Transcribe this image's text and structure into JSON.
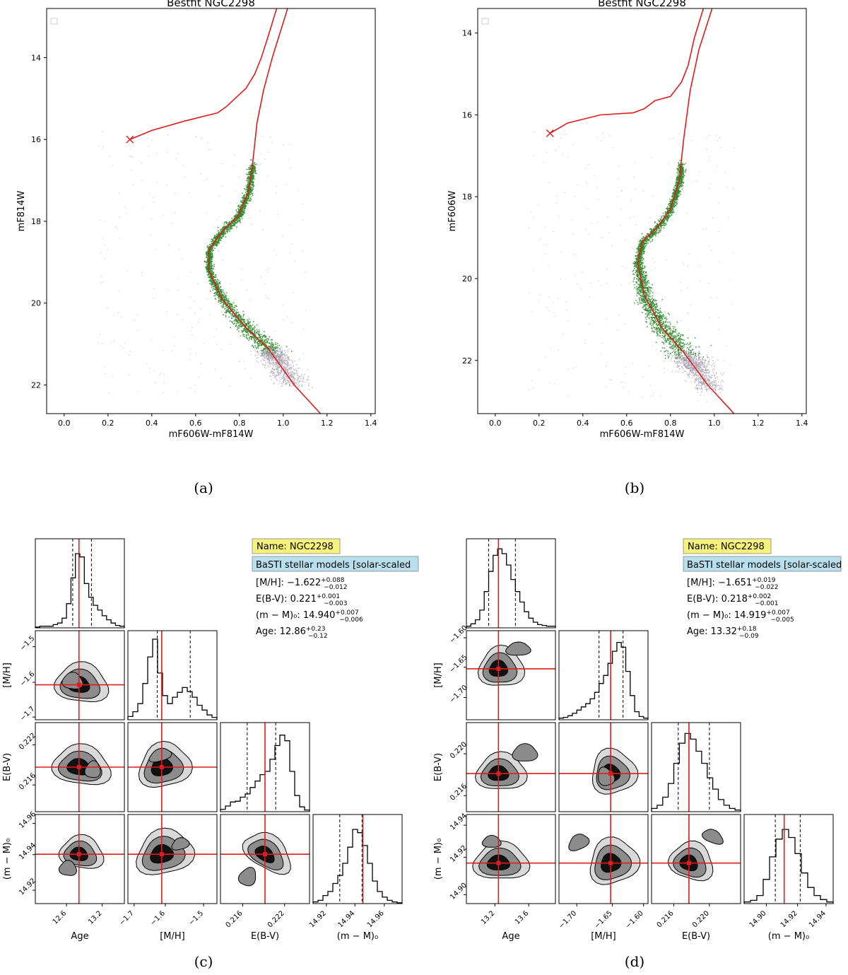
{
  "cmd_panels": [
    {
      "id": "a",
      "caption": "(a)",
      "chart_data": {
        "type": "scatter",
        "title": "Bestfit NGC2298",
        "xlabel": "mF606W-mF814W",
        "ylabel": "mF814W",
        "xlim": [
          -0.08,
          1.42
        ],
        "ylim": [
          22.7,
          12.8
        ],
        "xticks": [
          "0.0",
          "0.2",
          "0.4",
          "0.6",
          "0.8",
          "1.0",
          "1.2",
          "1.4"
        ],
        "yticks": [
          "14",
          "16",
          "18",
          "20",
          "22"
        ],
        "ytick_values": [
          14,
          16,
          18,
          20,
          22
        ],
        "xtick_values": [
          0.0,
          0.2,
          0.4,
          0.6,
          0.8,
          1.0,
          1.2,
          1.4
        ],
        "isochrone": {
          "hb": [
            [
              0.3,
              16.0
            ],
            [
              0.4,
              15.78
            ],
            [
              0.55,
              15.55
            ],
            [
              0.7,
              15.35
            ],
            [
              0.74,
              15.2
            ],
            [
              0.78,
              15.0
            ],
            [
              0.83,
              14.75
            ],
            [
              0.87,
              14.4
            ],
            [
              0.9,
              14.0
            ],
            [
              0.93,
              13.5
            ],
            [
              0.97,
              12.8
            ]
          ],
          "rgb": [
            [
              1.17,
              22.7
            ],
            [
              1.05,
              22.0
            ],
            [
              0.93,
              21.1
            ],
            [
              0.83,
              20.6
            ],
            [
              0.72,
              19.9
            ],
            [
              0.66,
              19.2
            ],
            [
              0.66,
              18.7
            ],
            [
              0.72,
              18.25
            ],
            [
              0.79,
              17.9
            ],
            [
              0.84,
              17.3
            ],
            [
              0.86,
              16.6
            ],
            [
              0.88,
              15.6
            ],
            [
              0.91,
              14.8
            ],
            [
              0.95,
              14.0
            ],
            [
              1.02,
              12.8
            ]
          ]
        },
        "hb_end_marker": [
          0.3,
          16.0
        ]
      }
    },
    {
      "id": "b",
      "caption": "(b)",
      "chart_data": {
        "type": "scatter",
        "title": "Bestfit NGC2298",
        "xlabel": "mF606W-mF814W",
        "ylabel": "mF606W",
        "xlim": [
          -0.08,
          1.42
        ],
        "ylim": [
          23.3,
          13.4
        ],
        "xticks": [
          "0.0",
          "0.2",
          "0.4",
          "0.6",
          "0.8",
          "1.0",
          "1.2",
          "1.4"
        ],
        "yticks": [
          "14",
          "16",
          "18",
          "20",
          "22"
        ],
        "ytick_values": [
          14,
          16,
          18,
          20,
          22
        ],
        "xtick_values": [
          0.0,
          0.2,
          0.4,
          0.6,
          0.8,
          1.0,
          1.2,
          1.4
        ],
        "isochrone": {
          "hb": [
            [
              0.25,
              16.45
            ],
            [
              0.33,
              16.2
            ],
            [
              0.48,
              16.0
            ],
            [
              0.63,
              15.95
            ],
            [
              0.68,
              15.85
            ],
            [
              0.73,
              15.65
            ],
            [
              0.8,
              15.55
            ],
            [
              0.85,
              15.2
            ],
            [
              0.88,
              14.8
            ],
            [
              0.91,
              14.1
            ],
            [
              0.95,
              13.4
            ]
          ],
          "rgb": [
            [
              1.09,
              23.3
            ],
            [
              0.97,
              22.6
            ],
            [
              0.86,
              21.8
            ],
            [
              0.76,
              21.2
            ],
            [
              0.68,
              20.4
            ],
            [
              0.65,
              19.6
            ],
            [
              0.67,
              19.1
            ],
            [
              0.74,
              18.75
            ],
            [
              0.8,
              18.3
            ],
            [
              0.84,
              17.6
            ],
            [
              0.86,
              16.6
            ],
            [
              0.89,
              15.4
            ],
            [
              0.93,
              14.4
            ],
            [
              0.99,
              13.4
            ]
          ]
        },
        "hb_end_marker": [
          0.25,
          16.45
        ]
      }
    }
  ],
  "corner_panels": [
    {
      "id": "c",
      "caption": "(c)",
      "name_label": "Name: NGC2298",
      "models_label": "BaSTI stellar models [solar-scaled",
      "params": [
        {
          "label": "[M/H]: ",
          "value": "−1.622",
          "sup": "+0.088",
          "sub": "−0.012"
        },
        {
          "label": "E(B-V): ",
          "value": "0.221",
          "sup": "+0.001",
          "sub": "−0.003"
        },
        {
          "label": "(m − M)₀: ",
          "value": "14.940",
          "sup": "+0.007",
          "sub": "−0.006"
        },
        {
          "label": "Age: ",
          "value": "12.86",
          "sup": "+0.23",
          "sub": "−0.12"
        }
      ],
      "axis_labels": [
        "Age",
        "[M/H]",
        "E(B-V)",
        "(m − M)₀"
      ],
      "x_ticks": [
        [
          "12.6",
          "13.2"
        ],
        [
          "−1.7",
          "−1.6",
          "−1.5"
        ],
        [
          "0.216",
          "0.222"
        ],
        [
          "14.92",
          "14.94",
          "14.96"
        ]
      ],
      "x_tick_pos": [
        [
          0.35,
          0.75
        ],
        [
          0.07,
          0.42,
          0.85
        ],
        [
          0.25,
          0.72
        ],
        [
          0.15,
          0.47,
          0.8
        ]
      ],
      "y_ticks": [
        [],
        [
          "−1.5",
          "−1.6",
          "−1.7"
        ],
        [
          "0.222",
          "0.216"
        ],
        [
          "14.96",
          "14.94",
          "14.92"
        ]
      ],
      "y_tick_pos": [
        [],
        [
          0.18,
          0.58,
          0.97
        ],
        [
          0.25,
          0.7
        ],
        [
          0.1,
          0.45,
          0.85
        ]
      ],
      "truth": [
        0.49,
        0.38,
        0.5,
        0.56
      ],
      "histograms": [
        [
          0.01,
          0.02,
          0.02,
          0.02,
          0.04,
          0.06,
          0.12,
          0.3,
          0.62,
          0.92,
          0.88,
          0.55,
          0.38,
          0.28,
          0.22,
          0.15,
          0.1,
          0.06,
          0.03,
          0.02
        ],
        [
          0.04,
          0.1,
          0.2,
          0.45,
          0.78,
          1.0,
          0.58,
          0.3,
          0.2,
          0.28,
          0.34,
          0.4,
          0.35,
          0.28,
          0.18,
          0.12,
          0.06,
          0.03
        ],
        [
          0.03,
          0.07,
          0.12,
          0.13,
          0.18,
          0.22,
          0.3,
          0.38,
          0.46,
          0.5,
          0.65,
          0.82,
          0.95,
          0.88,
          0.5,
          0.2,
          0.06,
          0.02
        ],
        [
          0.02,
          0.04,
          0.1,
          0.15,
          0.25,
          0.35,
          0.5,
          0.7,
          0.92,
          0.88,
          0.72,
          0.5,
          0.28,
          0.15,
          0.08,
          0.04,
          0.02,
          0.01
        ]
      ],
      "hist_lines": [
        [
          0.42,
          0.63
        ],
        [
          0.33,
          0.7
        ],
        [
          0.3,
          0.62
        ],
        [
          0.3,
          0.55
        ]
      ]
    },
    {
      "id": "d",
      "caption": "(d)",
      "name_label": "Name: NGC2298",
      "models_label": "BaSTI stellar models [solar-scaled",
      "params": [
        {
          "label": "[M/H]: ",
          "value": "−1.651",
          "sup": "+0.019",
          "sub": "−0.022"
        },
        {
          "label": "E(B-V): ",
          "value": "0.218",
          "sup": "+0.002",
          "sub": "−0.001"
        },
        {
          "label": "(m − M)₀: ",
          "value": "14.919",
          "sup": "+0.007",
          "sub": "−0.005"
        },
        {
          "label": "Age: ",
          "value": "13.32",
          "sup": "+0.18",
          "sub": "−0.09"
        }
      ],
      "axis_labels": [
        "Age",
        "[M/H]",
        "E(B-V)",
        "(m − M)₀"
      ],
      "x_ticks": [
        [
          "13.2",
          "13.6"
        ],
        [
          "−1.70",
          "−1.65",
          "−1.60"
        ],
        [
          "0.216",
          "0.220"
        ],
        [
          "14.90",
          "14.92",
          "14.94"
        ]
      ],
      "x_tick_pos": [
        [
          0.32,
          0.7
        ],
        [
          0.2,
          0.6,
          0.95
        ],
        [
          0.25,
          0.65
        ],
        [
          0.25,
          0.6,
          0.92
        ]
      ],
      "y_ticks": [
        [],
        [
          "−1.60",
          "−1.65",
          "−1.70"
        ],
        [
          "0.220",
          "0.216"
        ],
        [
          "14.94",
          "14.92",
          "14.90"
        ]
      ],
      "y_tick_pos": [
        [],
        [
          0.08,
          0.41,
          0.75
        ],
        [
          0.35,
          0.82
        ],
        [
          0.12,
          0.48,
          0.9
        ]
      ],
      "truth": [
        0.36,
        0.58,
        0.42,
        0.45
      ],
      "histograms": [
        [
          0.02,
          0.05,
          0.1,
          0.22,
          0.45,
          0.7,
          0.9,
          0.98,
          0.92,
          0.78,
          0.6,
          0.45,
          0.32,
          0.2,
          0.12,
          0.07,
          0.04,
          0.03,
          0.02,
          0.02
        ],
        [
          0.02,
          0.03,
          0.05,
          0.08,
          0.12,
          0.16,
          0.2,
          0.26,
          0.34,
          0.45,
          0.55,
          0.7,
          0.85,
          0.96,
          0.9,
          0.6,
          0.3,
          0.1,
          0.04,
          0.02
        ],
        [
          0.04,
          0.08,
          0.18,
          0.35,
          0.6,
          0.85,
          0.97,
          0.9,
          0.75,
          0.6,
          0.42,
          0.28,
          0.15,
          0.08,
          0.04,
          0.02
        ],
        [
          0.02,
          0.04,
          0.1,
          0.3,
          0.58,
          0.8,
          0.92,
          0.82,
          0.62,
          0.38,
          0.2,
          0.1,
          0.05,
          0.02
        ]
      ],
      "hist_lines": [
        [
          0.25,
          0.55
        ],
        [
          0.45,
          0.72
        ],
        [
          0.3,
          0.65
        ],
        [
          0.35,
          0.63
        ]
      ]
    }
  ]
}
